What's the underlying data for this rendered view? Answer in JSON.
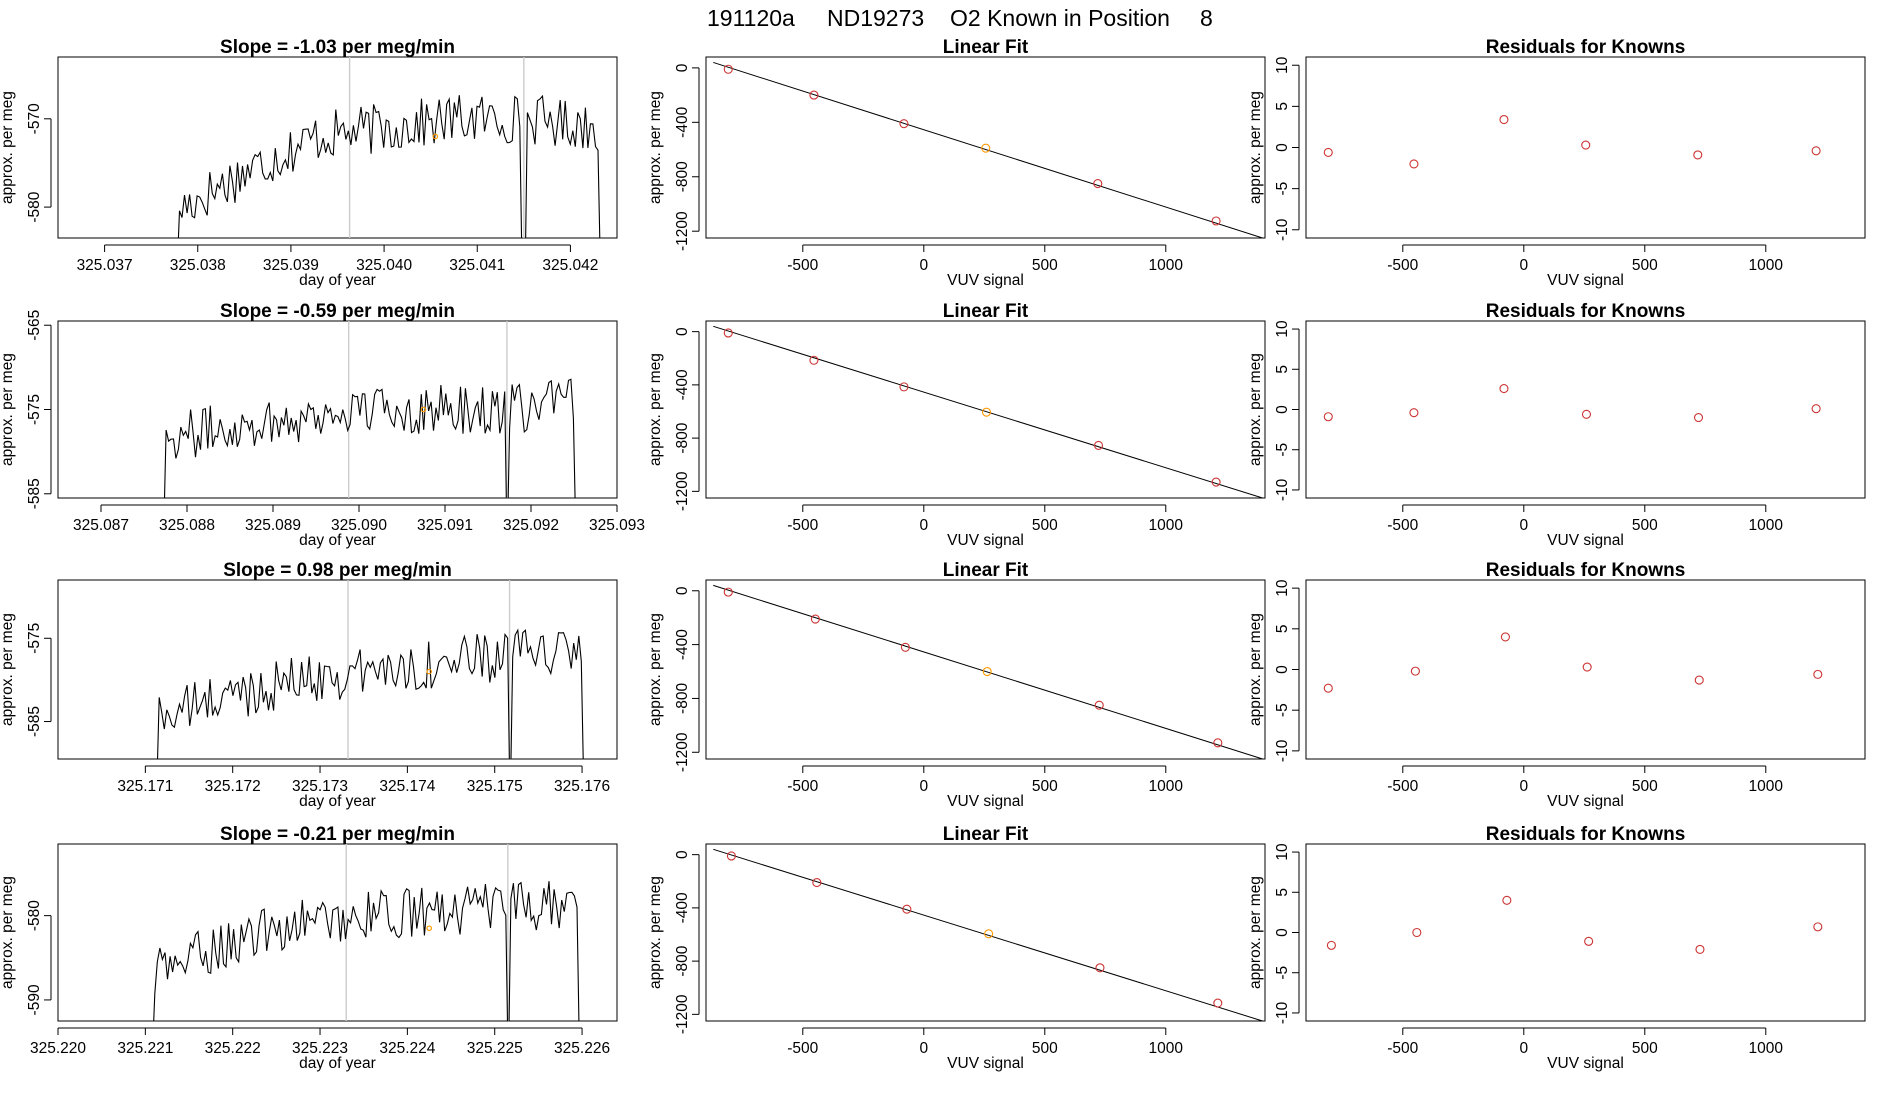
{
  "figure_title": {
    "run": "191120a",
    "tank": "ND19273",
    "label": "O2 Known in Position",
    "position": "8"
  },
  "colors": {
    "line": "#000000",
    "point": "#cd3333",
    "highlight": "#ff9900",
    "vline": "#cccccc"
  },
  "chart_data": [
    {
      "type": "line",
      "title": "Slope =  -1.03  per meg/min",
      "xlabel": "day of year",
      "ylabel": "approx. per meg",
      "xlim": [
        325.0365,
        325.0425
      ],
      "ylim": [
        -583.5,
        -563.0
      ],
      "xticks": [
        "325.037",
        "325.038",
        "325.039",
        "325.040",
        "325.041",
        "325.042"
      ],
      "yticks": [
        "-580",
        "-570"
      ],
      "x_start": 325.03775,
      "x_end": 325.04235,
      "vlines": [
        325.03963,
        325.0415
      ],
      "highlight": {
        "x": 325.04055,
        "y": -572.0
      },
      "trace_mean": [
        -580.5,
        -576.0,
        -572.0,
        -571.0,
        -570.0,
        -570.0,
        -571.0
      ]
    },
    {
      "type": "line",
      "title": "Slope =  -0.59  per meg/min",
      "xlabel": "day of year",
      "ylabel": "approx. per meg",
      "xlim": [
        325.0865,
        325.093
      ],
      "ylim": [
        -585.5,
        -564.5
      ],
      "xticks": [
        "325.087",
        "325.088",
        "325.089",
        "325.090",
        "325.091",
        "325.092",
        "325.093"
      ],
      "yticks": [
        "-585",
        "-575",
        "-565"
      ],
      "x_start": 325.0877,
      "x_end": 325.09255,
      "vlines": [
        325.08988,
        325.09172
      ],
      "highlight": {
        "x": 325.09075,
        "y": -575.0
      },
      "trace_mean": [
        -578.5,
        -577.0,
        -576.0,
        -575.0,
        -575.0,
        -575.0,
        -574.0
      ]
    },
    {
      "type": "line",
      "title": "Slope =  0.98  per meg/min",
      "xlabel": "day of year",
      "ylabel": "approx. per meg",
      "xlim": [
        325.17,
        325.1764
      ],
      "ylim": [
        -589.5,
        -568.0
      ],
      "xticks": [
        "325.171",
        "325.172",
        "325.173",
        "325.174",
        "325.175",
        "325.176"
      ],
      "yticks": [
        "-585",
        "-575"
      ],
      "x_start": 325.1711,
      "x_end": 325.17605,
      "vlines": [
        325.17332,
        325.17517
      ],
      "highlight": {
        "x": 325.17425,
        "y": -579.0
      },
      "trace_mean": [
        -584.5,
        -582.0,
        -580.0,
        -579.0,
        -578.0,
        -577.0,
        -576.5
      ]
    },
    {
      "type": "line",
      "title": "Slope =  -0.21  per meg/min",
      "xlabel": "day of year",
      "ylabel": "approx. per meg",
      "xlim": [
        325.22,
        325.2264
      ],
      "ylim": [
        -592.5,
        -571.5
      ],
      "xticks": [
        "325.220",
        "325.221",
        "325.222",
        "325.223",
        "325.224",
        "325.225",
        "325.226"
      ],
      "yticks": [
        "-590",
        "-580"
      ],
      "x_start": 325.22105,
      "x_end": 325.226,
      "vlines": [
        325.2233,
        325.22515
      ],
      "highlight": {
        "x": 325.22425,
        "y": -581.5
      },
      "trace_mean": [
        -587.0,
        -583.5,
        -581.0,
        -580.0,
        -579.5,
        -579.0,
        -578.5
      ]
    },
    {
      "type": "scatter",
      "title": "Linear Fit",
      "xlabel": "VUV signal",
      "ylabel": "approx. per meg",
      "xlim": [
        -900,
        1410
      ],
      "ylim": [
        -1250,
        80
      ],
      "xticks": [
        "-500",
        "0",
        "500",
        "1000"
      ],
      "yticks": [
        "0",
        "-400",
        "-800",
        "-1200"
      ],
      "x": [
        -808,
        -454,
        -82,
        256,
        719,
        1208
      ],
      "y": [
        -10,
        -200,
        -410,
        -590,
        -850,
        -1125
      ],
      "highlight_index": 3,
      "fit_line": {
        "x": [
          -870,
          1400
        ],
        "y": [
          40,
          -1250
        ]
      }
    },
    {
      "type": "scatter",
      "title": "Linear Fit",
      "xlabel": "VUV signal",
      "ylabel": "approx. per meg",
      "xlim": [
        -900,
        1410
      ],
      "ylim": [
        -1250,
        80
      ],
      "xticks": [
        "-500",
        "0",
        "500",
        "1000"
      ],
      "yticks": [
        "0",
        "-400",
        "-800",
        "-1200"
      ],
      "x": [
        -808,
        -454,
        -82,
        259,
        722,
        1208
      ],
      "y": [
        -10,
        -215,
        -415,
        -605,
        -855,
        -1130
      ],
      "highlight_index": 3,
      "fit_line": {
        "x": [
          -870,
          1400
        ],
        "y": [
          40,
          -1250
        ]
      }
    },
    {
      "type": "scatter",
      "title": "Linear Fit",
      "xlabel": "VUV signal",
      "ylabel": "approx. per meg",
      "xlim": [
        -900,
        1410
      ],
      "ylim": [
        -1250,
        80
      ],
      "xticks": [
        "-500",
        "0",
        "500",
        "1000"
      ],
      "yticks": [
        "0",
        "-400",
        "-800",
        "-1200"
      ],
      "x": [
        -808,
        -448,
        -76,
        262,
        725,
        1215
      ],
      "y": [
        -10,
        -210,
        -420,
        -600,
        -850,
        -1130
      ],
      "highlight_index": 3,
      "fit_line": {
        "x": [
          -870,
          1400
        ],
        "y": [
          40,
          -1250
        ]
      }
    },
    {
      "type": "scatter",
      "title": "Linear Fit",
      "xlabel": "VUV signal",
      "ylabel": "approx. per meg",
      "xlim": [
        -900,
        1410
      ],
      "ylim": [
        -1250,
        80
      ],
      "xticks": [
        "-500",
        "0",
        "500",
        "1000"
      ],
      "yticks": [
        "0",
        "-400",
        "-800",
        "-1200"
      ],
      "x": [
        -795,
        -442,
        -70,
        268,
        728,
        1215
      ],
      "y": [
        -10,
        -210,
        -410,
        -595,
        -850,
        -1115
      ],
      "highlight_index": 3,
      "fit_line": {
        "x": [
          -870,
          1400
        ],
        "y": [
          40,
          -1250
        ]
      }
    },
    {
      "type": "scatter",
      "title": "Residuals for Knowns",
      "xlabel": "VUV signal",
      "ylabel": "approx. per meg",
      "xlim": [
        -900,
        1410
      ],
      "ylim": [
        -11,
        11
      ],
      "xticks": [
        "-500",
        "0",
        "500",
        "1000"
      ],
      "yticks": [
        "-10",
        "-5",
        "0",
        "5",
        "10"
      ],
      "x": [
        -808,
        -454,
        -82,
        256,
        719,
        1208
      ],
      "y": [
        -0.6,
        -2.0,
        3.4,
        0.3,
        -0.9,
        -0.4
      ]
    },
    {
      "type": "scatter",
      "title": "Residuals for Knowns",
      "xlabel": "VUV signal",
      "ylabel": "approx. per meg",
      "xlim": [
        -900,
        1410
      ],
      "ylim": [
        -11,
        11
      ],
      "xticks": [
        "-500",
        "0",
        "500",
        "1000"
      ],
      "yticks": [
        "-10",
        "-5",
        "0",
        "5",
        "10"
      ],
      "x": [
        -808,
        -454,
        -82,
        259,
        722,
        1208
      ],
      "y": [
        -0.9,
        -0.4,
        2.6,
        -0.6,
        -1.0,
        0.1
      ]
    },
    {
      "type": "scatter",
      "title": "Residuals for Knowns",
      "xlabel": "VUV signal",
      "ylabel": "approx. per meg",
      "xlim": [
        -900,
        1410
      ],
      "ylim": [
        -11,
        11
      ],
      "xticks": [
        "-500",
        "0",
        "500",
        "1000"
      ],
      "yticks": [
        "-10",
        "-5",
        "0",
        "5",
        "10"
      ],
      "x": [
        -808,
        -448,
        -76,
        262,
        725,
        1215
      ],
      "y": [
        -2.3,
        -0.2,
        4.0,
        0.3,
        -1.3,
        -0.6
      ]
    },
    {
      "type": "scatter",
      "title": "Residuals for Knowns",
      "xlabel": "VUV signal",
      "ylabel": "approx. per meg",
      "xlim": [
        -900,
        1410
      ],
      "ylim": [
        -11,
        11
      ],
      "xticks": [
        "-500",
        "0",
        "500",
        "1000"
      ],
      "yticks": [
        "-10",
        "-5",
        "0",
        "5",
        "10"
      ],
      "x": [
        -795,
        -442,
        -70,
        268,
        728,
        1215
      ],
      "y": [
        -1.6,
        0.0,
        4.0,
        -1.1,
        -2.1,
        0.7
      ]
    }
  ]
}
